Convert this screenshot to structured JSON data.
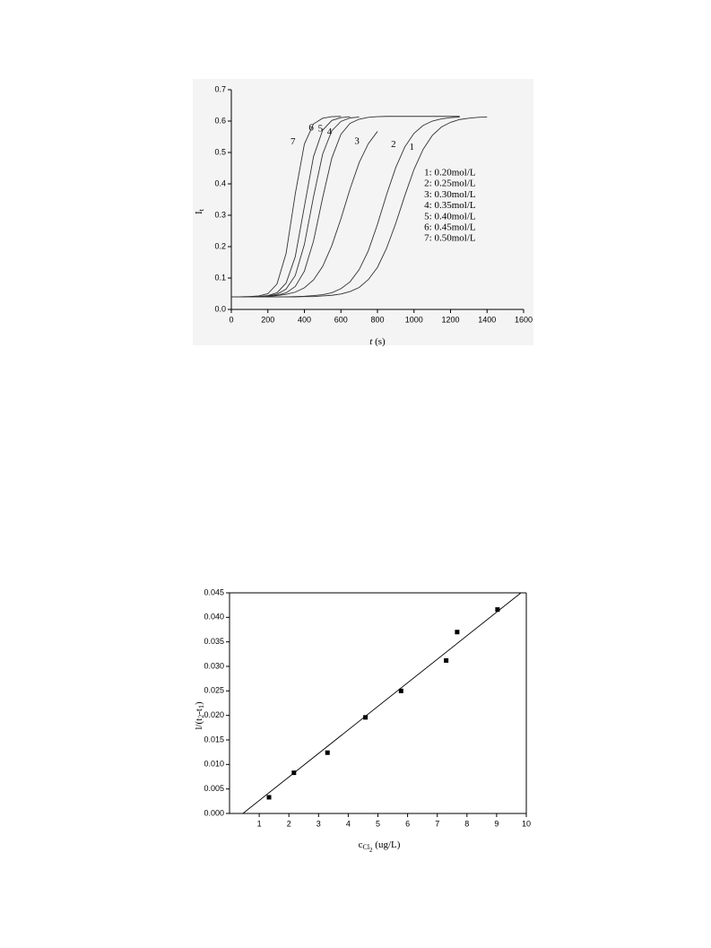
{
  "chart_data": [
    {
      "type": "line",
      "x_label": [
        {
          "text": "t",
          "italic": true
        },
        {
          "text": " (s)"
        }
      ],
      "y_label": [
        {
          "text": "I"
        },
        {
          "text": "t",
          "sub": 1
        }
      ],
      "xlim": [
        0,
        1600
      ],
      "xticks": [
        0,
        200,
        400,
        600,
        800,
        1000,
        1200,
        1400,
        1600
      ],
      "ylim": [
        0,
        0.7
      ],
      "yticks": [
        {
          "value": 0,
          "label": "0.0"
        },
        0.1,
        0.2,
        0.3,
        0.4,
        0.5,
        0.6,
        0.7
      ],
      "frame": "open",
      "grid": false,
      "legend": "right",
      "background": "#f4f4f4",
      "x": [
        0,
        50,
        100,
        150,
        200,
        250,
        300,
        350,
        400,
        450,
        500,
        550,
        600,
        650,
        700,
        750,
        800,
        850,
        900,
        950,
        1000,
        1050,
        1100,
        1150,
        1200,
        1250,
        1300,
        1350,
        1400
      ],
      "series": [
        {
          "name": "1: 0.20mol/L",
          "label": "1",
          "color": "#333333",
          "values": [
            0.04,
            0.04,
            0.04,
            0.04,
            0.04,
            0.04,
            0.04,
            0.04,
            0.041,
            0.041,
            0.043,
            0.045,
            0.049,
            0.057,
            0.07,
            0.095,
            0.134,
            0.195,
            0.274,
            0.363,
            0.446,
            0.51,
            0.554,
            0.581,
            0.596,
            0.605,
            0.609,
            0.612,
            0.613
          ]
        },
        {
          "name": "2: 0.25mol/L",
          "label": "2",
          "color": "#333333",
          "values": [
            0.04,
            0.04,
            0.04,
            0.04,
            0.04,
            0.04,
            0.04,
            0.041,
            0.042,
            0.044,
            0.047,
            0.053,
            0.066,
            0.088,
            0.127,
            0.187,
            0.271,
            0.366,
            0.452,
            0.518,
            0.561,
            0.586,
            0.6,
            0.607,
            0.611,
            0.613,
            null,
            null,
            null
          ]
        },
        {
          "name": "3: 0.30mol/L",
          "label": "3",
          "color": "#333333",
          "values": [
            0.04,
            0.04,
            0.041,
            0.041,
            0.042,
            0.044,
            0.048,
            0.055,
            0.069,
            0.094,
            0.137,
            0.203,
            0.289,
            0.384,
            0.468,
            0.528,
            0.567,
            null,
            null,
            null,
            null,
            null,
            null,
            null,
            null,
            null,
            null,
            null,
            null
          ]
        },
        {
          "name": "4: 0.35mol/L",
          "label": "4",
          "color": "#333333",
          "values": [
            0.04,
            0.04,
            0.04,
            0.041,
            0.042,
            0.045,
            0.053,
            0.073,
            0.122,
            0.218,
            0.356,
            0.482,
            0.558,
            0.593,
            0.606,
            0.612,
            0.614,
            0.615,
            0.615,
            0.615,
            0.615,
            0.615,
            0.615,
            0.615,
            0.615,
            0.615,
            null,
            null,
            null
          ]
        },
        {
          "name": "5: 0.40mol/L",
          "label": "5",
          "color": "#333333",
          "values": [
            0.04,
            0.04,
            0.04,
            0.041,
            0.043,
            0.048,
            0.065,
            0.108,
            0.207,
            0.359,
            0.495,
            0.569,
            0.599,
            0.61,
            0.613,
            null,
            null,
            null,
            null,
            null,
            null,
            null,
            null,
            null,
            null,
            null,
            null,
            null,
            null
          ]
        },
        {
          "name": "6: 0.45mol/L",
          "label": "6",
          "color": "#333333",
          "values": [
            0.04,
            0.04,
            0.04,
            0.041,
            0.044,
            0.053,
            0.084,
            0.168,
            0.328,
            0.487,
            0.571,
            0.602,
            0.611,
            0.614,
            null,
            null,
            null,
            null,
            null,
            null,
            null,
            null,
            null,
            null,
            null,
            null,
            null,
            null,
            null
          ]
        },
        {
          "name": "7: 0.50mol/L",
          "label": "7",
          "color": "#333333",
          "values": [
            0.04,
            0.04,
            0.041,
            0.043,
            0.05,
            0.081,
            0.179,
            0.368,
            0.527,
            0.591,
            0.609,
            0.614,
            0.615,
            null,
            null,
            null,
            null,
            null,
            null,
            null,
            null,
            null,
            null,
            null,
            null,
            null,
            null,
            null,
            null
          ]
        }
      ]
    },
    {
      "type": "scatter",
      "x_label": [
        {
          "text": "c"
        },
        {
          "text": "Cl",
          "sub": 1
        },
        {
          "text": "2",
          "sub": 2
        },
        {
          "text": " (ug/L)"
        }
      ],
      "y_label": [
        {
          "text": "l/(t"
        },
        {
          "text": "2",
          "sub": 1
        },
        {
          "text": "-t"
        },
        {
          "text": "1",
          "sub": 1
        },
        {
          "text": ")"
        }
      ],
      "xlim": [
        0,
        10
      ],
      "xticks": [
        1,
        2,
        3,
        4,
        5,
        6,
        7,
        8,
        9,
        10
      ],
      "ylim": [
        0,
        0.045
      ],
      "yticks": [
        {
          "value": 0,
          "label": "0.000"
        },
        {
          "value": 0.005,
          "label": "0.005"
        },
        {
          "value": 0.01,
          "label": "0.010"
        },
        {
          "value": 0.015,
          "label": "0.015"
        },
        {
          "value": 0.02,
          "label": "0.020"
        },
        {
          "value": 0.025,
          "label": "0.025"
        },
        {
          "value": 0.03,
          "label": "0.030"
        },
        {
          "value": 0.035,
          "label": "0.035"
        },
        {
          "value": 0.04,
          "label": "0.040"
        },
        {
          "value": 0.045,
          "label": "0.045"
        }
      ],
      "frame": "box",
      "grid": false,
      "series": [
        {
          "style": "markers",
          "color": "#000000",
          "x": [
            1.33,
            2.17,
            3.3,
            4.58,
            5.78,
            7.3,
            7.67,
            9.03
          ],
          "values": [
            0.0033,
            0.0083,
            0.0124,
            0.0196,
            0.025,
            0.0312,
            0.037,
            0.0416
          ]
        },
        {
          "style": "line",
          "color": "#000000",
          "x": [
            0.45,
            9.82
          ],
          "values": [
            0,
            0.045
          ]
        }
      ]
    }
  ]
}
